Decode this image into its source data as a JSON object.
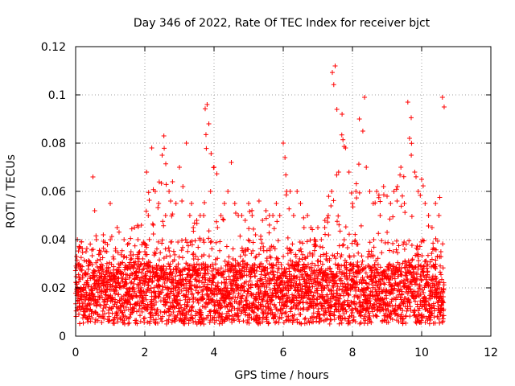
{
  "chart_data": {
    "type": "scatter",
    "title": "Day 346 of 2022, Rate Of TEC Index for receiver bjct",
    "xlabel": "GPS time / hours",
    "ylabel": "ROTI / TECUs",
    "xlim": [
      0,
      12
    ],
    "ylim": [
      0,
      0.12
    ],
    "x_ticks": [
      0,
      2,
      4,
      6,
      8,
      10,
      12
    ],
    "x_tick_labels": [
      "0",
      "2",
      "4",
      "6",
      "8",
      "10",
      "12"
    ],
    "y_ticks": [
      0,
      0.02,
      0.04,
      0.06,
      0.08,
      0.1,
      0.12
    ],
    "y_tick_labels": [
      "0",
      "0.02",
      "0.04",
      "0.06",
      "0.08",
      "0.1",
      "0.12"
    ],
    "grid": true,
    "marker": "+",
    "color": "#ff0000",
    "series": [
      {
        "name": "ROTI",
        "x": [
          0.05,
          0.1,
          0.2,
          0.3,
          0.4,
          0.5,
          0.55,
          0.6,
          0.7,
          0.8,
          0.9,
          1.0,
          1.1,
          1.2,
          1.3,
          1.4,
          1.5,
          1.6,
          1.7,
          1.8,
          1.85,
          1.9,
          2.0,
          2.05,
          2.1,
          2.2,
          2.3,
          2.4,
          2.5,
          2.55,
          2.6,
          2.7,
          2.8,
          2.9,
          3.0,
          3.1,
          3.2,
          3.3,
          3.35,
          3.4,
          3.5,
          3.6,
          3.7,
          3.8,
          3.85,
          3.9,
          4.0,
          4.1,
          4.2,
          4.3,
          4.4,
          4.5,
          4.6,
          4.7,
          4.8,
          4.9,
          5.0,
          5.1,
          5.2,
          5.3,
          5.4,
          5.5,
          5.6,
          5.7,
          5.8,
          5.9,
          6.0,
          6.05,
          6.1,
          6.2,
          6.3,
          6.4,
          6.5,
          6.6,
          6.7,
          6.8,
          6.9,
          7.0,
          7.1,
          7.2,
          7.3,
          7.4,
          7.5,
          7.55,
          7.6,
          7.7,
          7.8,
          7.9,
          8.0,
          8.1,
          8.2,
          8.3,
          8.35,
          8.4,
          8.5,
          8.6,
          8.7,
          8.8,
          8.9,
          9.0,
          9.1,
          9.2,
          9.3,
          9.4,
          9.5,
          9.6,
          9.65,
          9.7,
          9.8,
          9.9,
          10.0,
          10.1,
          10.2,
          10.3,
          10.4,
          10.5,
          10.6,
          10.65
        ],
        "y": [
          0.04,
          0.03,
          0.025,
          0.035,
          0.03,
          0.066,
          0.052,
          0.04,
          0.028,
          0.042,
          0.035,
          0.055,
          0.032,
          0.045,
          0.03,
          0.04,
          0.038,
          0.035,
          0.045,
          0.04,
          0.035,
          0.046,
          0.035,
          0.068,
          0.05,
          0.078,
          0.06,
          0.055,
          0.075,
          0.083,
          0.05,
          0.06,
          0.064,
          0.055,
          0.07,
          0.062,
          0.08,
          0.05,
          0.055,
          0.045,
          0.048,
          0.05,
          0.05,
          0.096,
          0.088,
          0.06,
          0.07,
          0.045,
          0.05,
          0.055,
          0.06,
          0.072,
          0.055,
          0.05,
          0.05,
          0.048,
          0.055,
          0.05,
          0.042,
          0.056,
          0.048,
          0.052,
          0.05,
          0.05,
          0.055,
          0.05,
          0.08,
          0.074,
          0.06,
          0.06,
          0.05,
          0.06,
          0.055,
          0.045,
          0.05,
          0.045,
          0.04,
          0.045,
          0.04,
          0.045,
          0.05,
          0.06,
          0.112,
          0.094,
          0.068,
          0.092,
          0.078,
          0.068,
          0.055,
          0.06,
          0.09,
          0.085,
          0.099,
          0.07,
          0.06,
          0.055,
          0.06,
          0.05,
          0.062,
          0.058,
          0.055,
          0.06,
          0.062,
          0.07,
          0.055,
          0.097,
          0.082,
          0.075,
          0.068,
          0.06,
          0.065,
          0.055,
          0.05,
          0.045,
          0.055,
          0.05,
          0.099,
          0.095
        ],
        "envelope_note": "dense cloud of points between ~0.005 and the listed peaks, mostly 0.005-0.035"
      }
    ]
  }
}
